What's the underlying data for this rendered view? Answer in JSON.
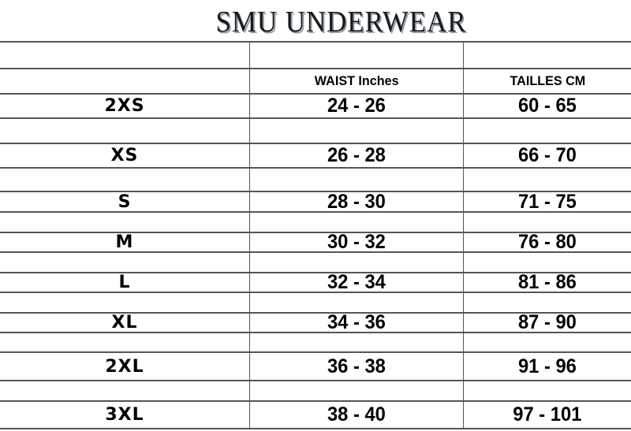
{
  "title": "SMU UNDERWEAR",
  "headers": {
    "size": "",
    "waist": "WAIST Inches",
    "cm": "TAILLES CM"
  },
  "rows": [
    {
      "size": "2XS",
      "waist": "24 - 26",
      "cm": "60 - 65"
    },
    {
      "size": "XS",
      "waist": "26 - 28",
      "cm": "66 - 70"
    },
    {
      "size": "S",
      "waist": "28 - 30",
      "cm": "71 - 75"
    },
    {
      "size": "M",
      "waist": "30 - 32",
      "cm": "76 - 80"
    },
    {
      "size": "L",
      "waist": "32 - 34",
      "cm": "81 - 86"
    },
    {
      "size": "XL",
      "waist": "34 - 36",
      "cm": "87 - 90"
    },
    {
      "size": "2XL",
      "waist": "36 - 38",
      "cm": "91 - 96"
    },
    {
      "size": "3XL",
      "waist": "38 - 40",
      "cm": "97 - 101"
    }
  ]
}
